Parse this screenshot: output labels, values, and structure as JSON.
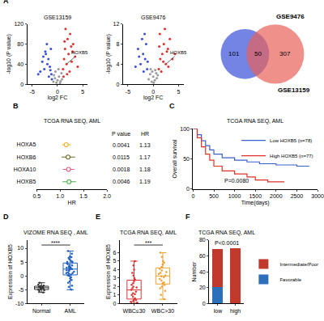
{
  "chart_data": [
    {
      "type": "scatter",
      "panel": "A",
      "title": "GSE13159",
      "xlabel": "log2 FC",
      "ylabel": "-log10 (P value)",
      "xlim": [
        -6,
        6
      ],
      "xticks": [
        -5,
        0,
        5
      ],
      "ylim": [
        0,
        120
      ],
      "yticks": [
        0,
        40,
        80,
        120
      ],
      "series": [
        {
          "color": "#3b4fd8",
          "x": [
            -1.2,
            -1.5,
            -1.8,
            -2.0,
            -2.3,
            -2.6,
            -3.0,
            -3.4,
            -1.3,
            -1.7,
            -2.1,
            -2.8,
            -1.1,
            -1.4,
            -3.8,
            -2.4
          ],
          "y": [
            20,
            35,
            50,
            40,
            60,
            30,
            45,
            25,
            70,
            15,
            80,
            55,
            10,
            28,
            20,
            65
          ]
        },
        {
          "color": "#e0302a",
          "x": [
            1.1,
            1.3,
            1.5,
            1.8,
            2.0,
            2.2,
            2.5,
            2.8,
            3.1,
            3.5,
            4.0,
            1.2,
            1.6,
            2.4,
            3.0,
            1.4,
            1.9,
            2.7
          ],
          "y": [
            30,
            50,
            70,
            40,
            90,
            60,
            100,
            45,
            80,
            55,
            35,
            15,
            110,
            25,
            65,
            85,
            20,
            75
          ]
        },
        {
          "color": "#9a9a9a",
          "x": [
            -0.8,
            -0.5,
            -0.2,
            0,
            0.3,
            0.6,
            0.9,
            -0.4,
            0.2,
            0.5,
            -0.7,
            0.8
          ],
          "y": [
            5,
            12,
            3,
            8,
            15,
            6,
            10,
            25,
            30,
            2,
            18,
            22
          ]
        }
      ],
      "annotations": [
        {
          "text": "HOXB5",
          "x": 1.8,
          "y": 40
        }
      ]
    },
    {
      "type": "scatter",
      "title": "GSE9476",
      "xlabel": "log2 FC",
      "ylabel": "-log10 (P value)",
      "xlim": [
        -6,
        6
      ],
      "xticks": [
        -5,
        0,
        5
      ],
      "ylim": [
        0,
        12
      ],
      "yticks": [
        0,
        4,
        8,
        12
      ],
      "series": [
        {
          "color": "#3b4fd8",
          "x": [
            -1.2,
            -1.6,
            -2.0,
            -2.5,
            -3.0,
            -1.4,
            -1.9,
            -2.2,
            -3.5,
            -1.1,
            -2.8,
            -1.7
          ],
          "y": [
            3,
            5,
            6,
            4,
            7,
            8,
            2.5,
            9,
            3.5,
            4.5,
            5.5,
            10
          ]
        },
        {
          "color": "#e0302a",
          "x": [
            1.1,
            1.4,
            1.8,
            2.1,
            2.5,
            2.9,
            3.3,
            3.8,
            1.3,
            1.6,
            2.3,
            2.7,
            3.0,
            1.2,
            2.0,
            4.3
          ],
          "y": [
            3,
            5,
            6,
            8,
            4,
            7,
            9,
            5,
            10,
            2.5,
            11,
            6.5,
            3.5,
            7.5,
            4.5,
            6
          ]
        },
        {
          "color": "#9a9a9a",
          "x": [
            -0.9,
            -0.6,
            -0.3,
            0,
            0.3,
            0.6,
            0.9,
            -0.5,
            0.4,
            0.1,
            -0.2,
            0.7
          ],
          "y": [
            1,
            2,
            0.5,
            1.5,
            0.8,
            2.2,
            1.8,
            3,
            2.8,
            0.3,
            2.5,
            1.2
          ]
        }
      ],
      "annotations": [
        {
          "text": "HOXB5",
          "x": 2.5,
          "y": 4
        }
      ]
    },
    {
      "type": "venn",
      "sets": [
        {
          "name": "GSE9476",
          "color": "#5b6ee1"
        },
        {
          "name": "GSE13159",
          "color": "#e8615a"
        }
      ],
      "values": [
        101,
        50,
        307
      ]
    },
    {
      "type": "forest",
      "panel": "B",
      "title": "TCGA RNA SEQ, AML",
      "xlabel": "HR",
      "categories": [
        "HOXA5",
        "HOXB6",
        "HOXA10",
        "HOXB5"
      ],
      "values": [
        1.13,
        1.17,
        1.18,
        1.19
      ],
      "ci_low": [
        1.04,
        1.03,
        1.06,
        1.05
      ],
      "ci_high": [
        1.23,
        1.32,
        1.3,
        1.34
      ],
      "p_values": [
        0.0041,
        0.0115,
        0.0018,
        0.0046
      ],
      "colors": [
        "#f0b429",
        "#6b6b2a",
        "#e06080",
        "#4caf50"
      ],
      "column_headers": [
        "P value",
        "HR"
      ],
      "xlim": [
        0.5,
        2
      ],
      "xticks": [
        0.5,
        {
          "value": 1,
          "label": "1.0"
        },
        1.5,
        {
          "value": 2,
          "label": "2.0"
        }
      ]
    },
    {
      "type": "line",
      "panel": "C",
      "title": "TCGA RNA SEQ, AML",
      "xlabel": "Time(days)",
      "ylabel": "Overall survival",
      "xlim": [
        0,
        3000
      ],
      "xticks": [
        0,
        500,
        1000,
        1500,
        2000,
        2500,
        3000
      ],
      "ylim": [
        0,
        100
      ],
      "yticks": [
        0,
        50,
        100
      ],
      "legend": "top right",
      "line_style": "step",
      "series": [
        {
          "name": "Low HOXB5 (n=78)",
          "color": "#3a5fcd",
          "x": [
            0,
            100,
            200,
            300,
            400,
            500,
            700,
            1000,
            1300,
            1600,
            2000,
            2500,
            2800
          ],
          "values": [
            100,
            90,
            80,
            72,
            65,
            58,
            52,
            48,
            45,
            42,
            40,
            38,
            38
          ]
        },
        {
          "name": "High HOXB5 (n=77)",
          "color": "#e0302a",
          "x": [
            0,
            100,
            200,
            300,
            400,
            500,
            700,
            1000,
            1300,
            1500,
            1800,
            2200
          ],
          "values": [
            100,
            85,
            70,
            58,
            48,
            38,
            30,
            25,
            20,
            15,
            12,
            12
          ]
        }
      ],
      "annotations": [
        "P=0.0080"
      ]
    },
    {
      "type": "box",
      "panel": "D",
      "title": "VIZOME RNA SEQ , AML",
      "ylabel": "Expression of HOXB5",
      "categories": [
        "Normal",
        "AML"
      ],
      "colors": [
        "#333333",
        "#1f5fbf"
      ],
      "values": [
        [
          -5.5,
          -4.8,
          -4.2,
          -3.9,
          -3.5,
          -4.5,
          -5.0,
          -3.2,
          -4.0,
          -6.0,
          -2.5,
          -4.3,
          -3.7,
          -5.2,
          -4.6
        ],
        [
          -5,
          -3.5,
          -2,
          -1,
          -0.5,
          0,
          0.5,
          1,
          1.2,
          1.5,
          2,
          2.2,
          2.5,
          3,
          3.2,
          3.5,
          4,
          4.5,
          5,
          5.5,
          6,
          6.5,
          7,
          8,
          9,
          -1.5,
          0.8,
          1.8,
          2.8,
          3.8,
          4.2,
          -2.5,
          0.2,
          2.4,
          5.2,
          6.8,
          -4,
          1,
          3,
          4.8
        ]
      ],
      "ylim": [
        -10,
        13
      ],
      "yticks": [
        -10,
        -5,
        0,
        5,
        10
      ],
      "significance": "****"
    },
    {
      "type": "box",
      "panel": "E",
      "title": "TCGA RNA SEQ, AML",
      "ylabel": "Expression of HOXB5",
      "categories": [
        "WBC≤30",
        "WBC>30"
      ],
      "colors": [
        "#e03030",
        "#f0a030"
      ],
      "values": [
        [
          0,
          0,
          0.1,
          0.2,
          0.3,
          0.5,
          0.6,
          0.8,
          1,
          1.2,
          1.4,
          1.6,
          1.8,
          2,
          2.2,
          2.4,
          2.6,
          3,
          3.3,
          3.6,
          4,
          4.5,
          5,
          0.4,
          1.1,
          1.9,
          2.8
        ],
        [
          0.5,
          1,
          1.5,
          2,
          2.2,
          2.5,
          2.7,
          2.9,
          3.1,
          3.3,
          3.5,
          3.7,
          3.9,
          4.1,
          4.3,
          4.6,
          5,
          5.5,
          6,
          2.4,
          3.2,
          3.6,
          1.8,
          4.8
        ]
      ],
      "ylim": [
        0,
        7.5
      ],
      "yticks": [
        0,
        1,
        2,
        3,
        4,
        5,
        6
      ],
      "significance": "***"
    },
    {
      "type": "bar",
      "panel": "F",
      "title": "TCGA RNA SEQ, AML",
      "ylabel": "Number",
      "stacked": true,
      "legend": "right",
      "categories": [
        "low",
        "high"
      ],
      "series": [
        {
          "name": "Favorable",
          "color": "#2c6fbb",
          "values": [
            21,
            0
          ]
        },
        {
          "name": "Intermediate/Poor",
          "color": "#c0392b",
          "values": [
            48,
            70
          ]
        }
      ],
      "ylim": [
        0,
        80
      ],
      "yticks": [
        0,
        20,
        40,
        60,
        80
      ],
      "annotations": [
        "P<0.0001"
      ]
    }
  ]
}
